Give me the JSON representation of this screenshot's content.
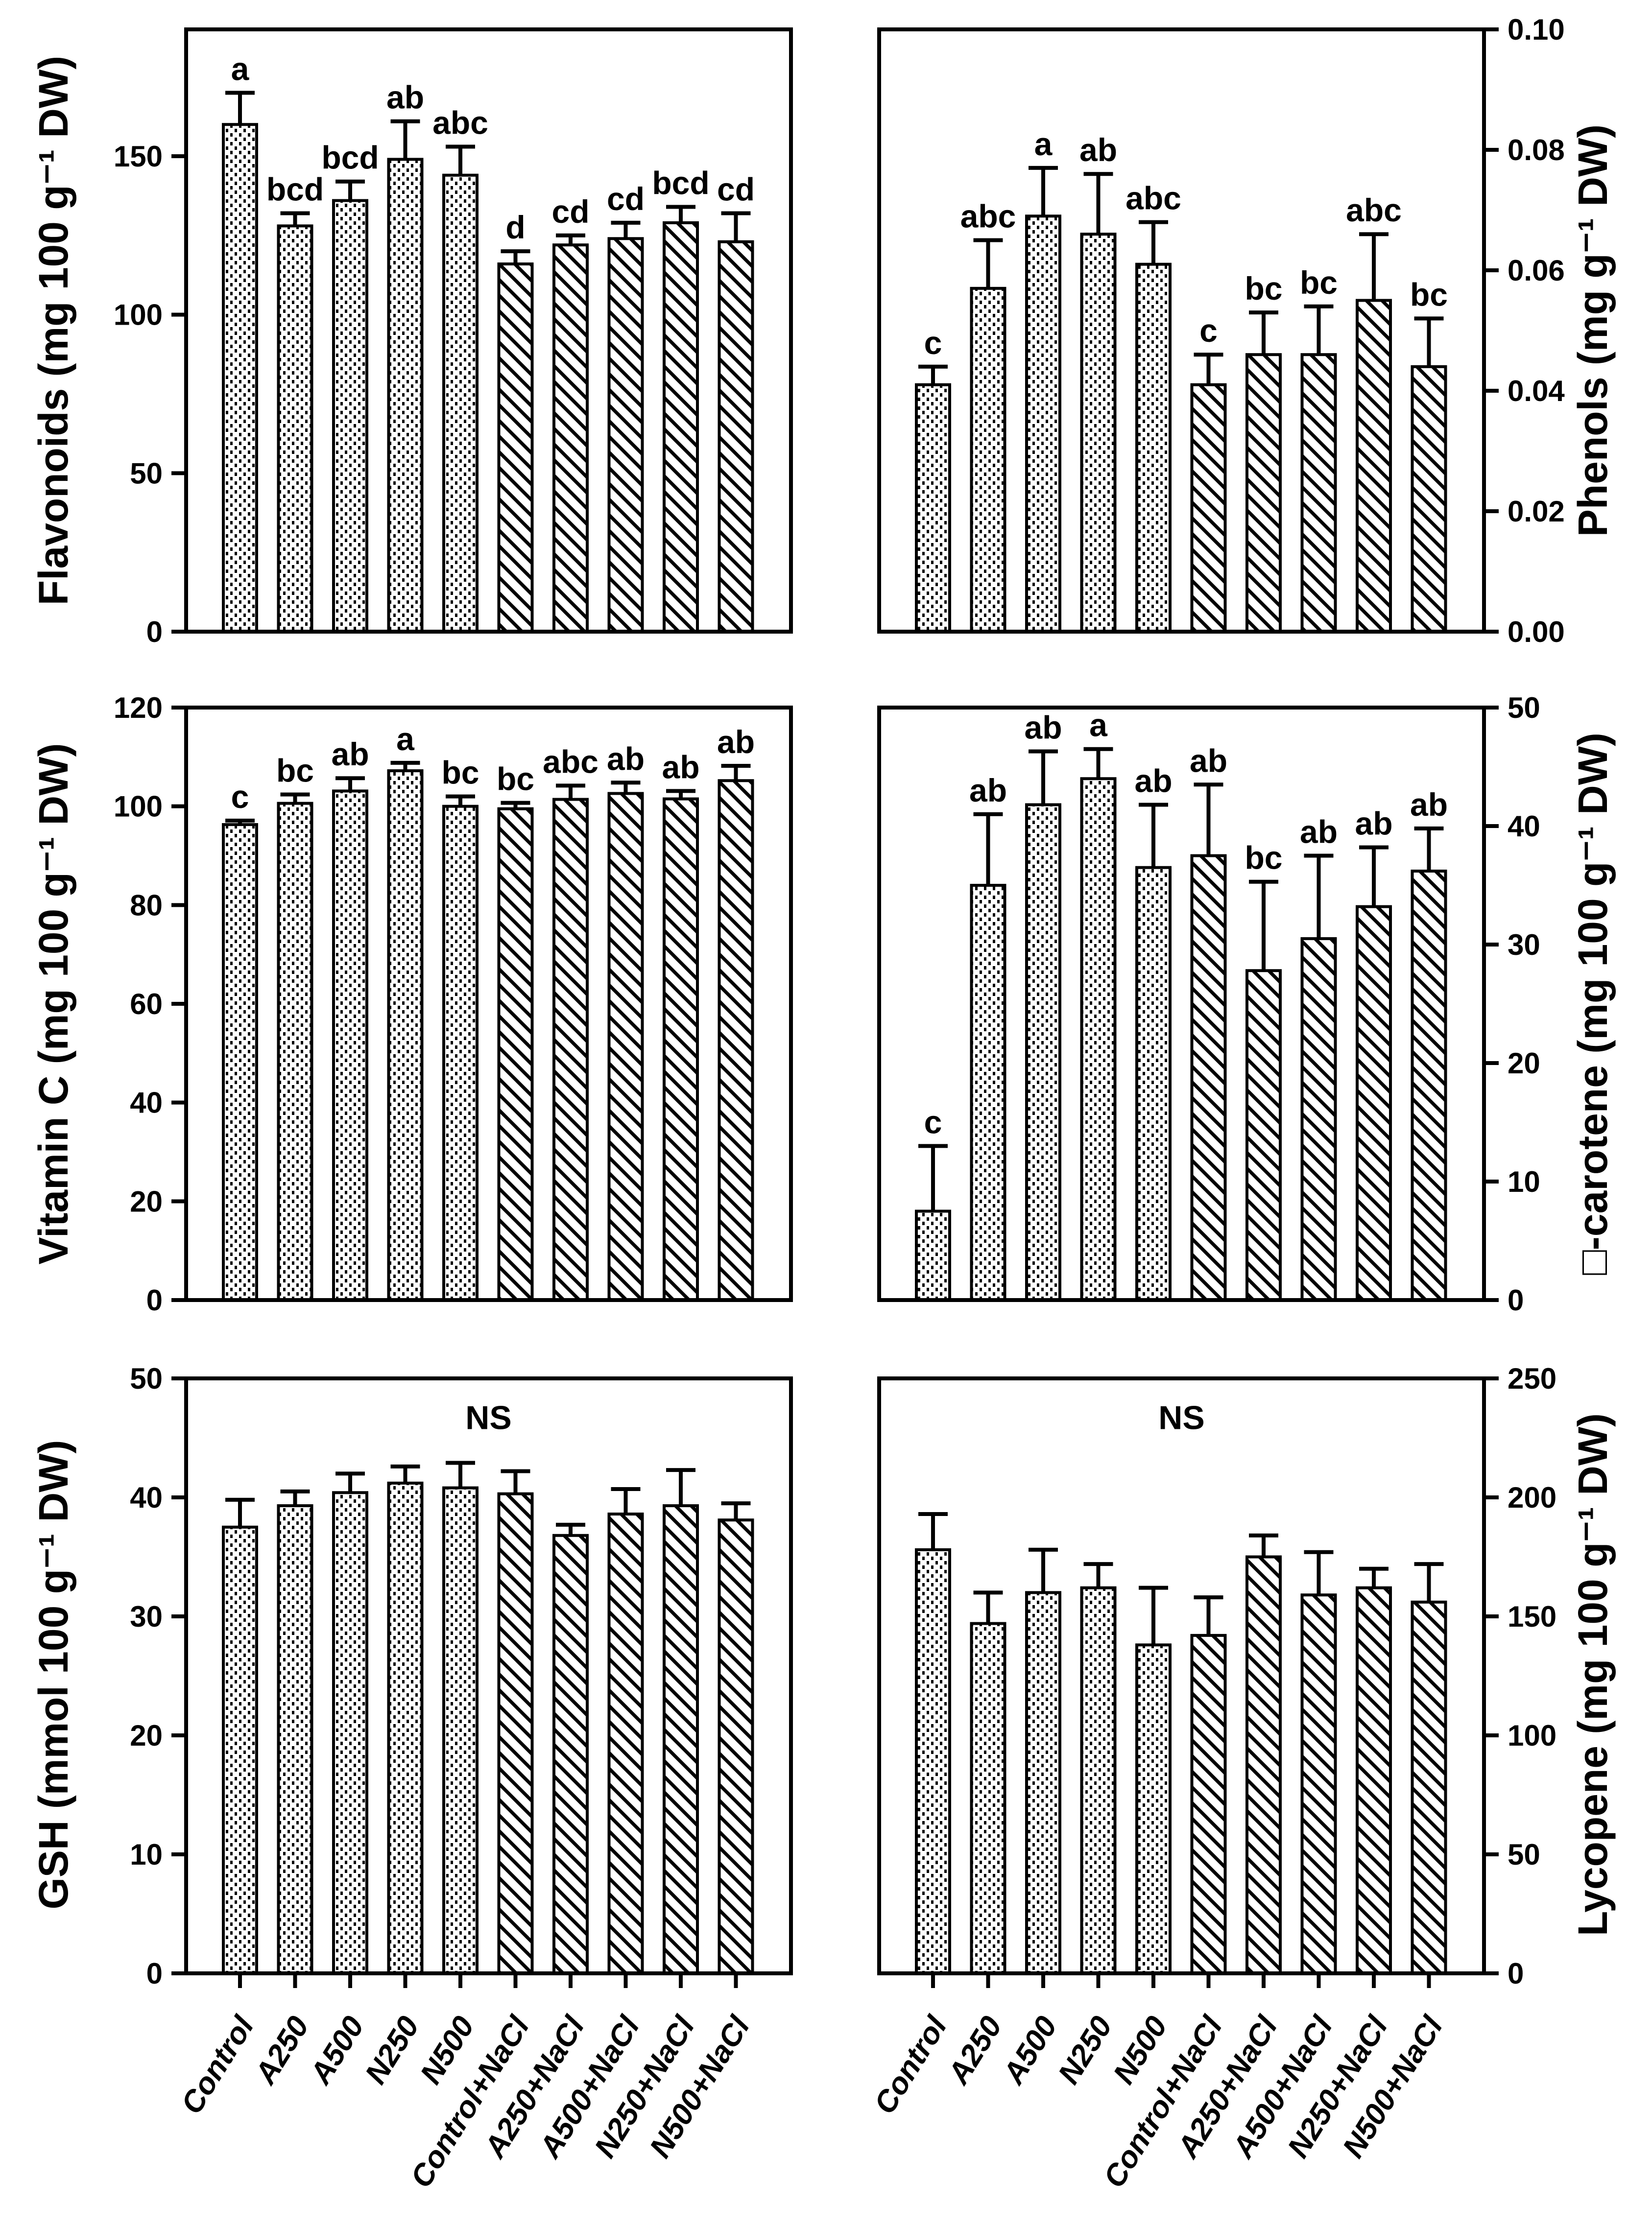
{
  "figure": {
    "background": "#ffffff",
    "ink": "#000000",
    "categories": [
      "Control",
      "A250",
      "A500",
      "N250",
      "N500",
      "Control+NaCl",
      "A250+NaCl",
      "A500+NaCl",
      "N250+NaCl",
      "N500+NaCl"
    ],
    "bar_fill_patterns": {
      "treatments_bars_1_to_5": "fine-dots",
      "nacl_bars_6_to_10": "diagonal-hatch"
    },
    "pattern_split_index": 5
  },
  "chart_data": [
    {
      "id": "flavonoids",
      "type": "bar",
      "row": 0,
      "col": 0,
      "axis_side": "left",
      "grid": false,
      "ylabel": "Flavonoids (mg 100 g⁻¹ DW)",
      "ylim": [
        0,
        190
      ],
      "yticks": [
        0,
        50,
        100,
        150
      ],
      "ytick_labels": [
        "0",
        "50",
        "100",
        "150"
      ],
      "categories": [
        "Control",
        "A250",
        "A500",
        "N250",
        "N500",
        "Control+NaCl",
        "A250+NaCl",
        "A500+NaCl",
        "N250+NaCl",
        "N500+NaCl"
      ],
      "values": [
        160,
        128,
        136,
        149,
        144,
        116,
        122,
        124,
        129,
        123
      ],
      "errors": [
        10,
        4,
        6,
        12,
        9,
        4,
        3,
        5,
        5,
        9
      ],
      "sig_letters": [
        "a",
        "bcd",
        "bcd",
        "ab",
        "abc",
        "d",
        "cd",
        "cd",
        "bcd",
        "cd"
      ],
      "annotation": "",
      "show_x_labels": false
    },
    {
      "id": "phenols",
      "type": "bar",
      "row": 0,
      "col": 1,
      "axis_side": "right",
      "grid": false,
      "ylabel": "Phenols (mg g⁻¹ DW)",
      "ylim": [
        0,
        0.1
      ],
      "yticks": [
        0,
        0.02,
        0.04,
        0.06,
        0.08,
        0.1
      ],
      "ytick_labels": [
        "0.00",
        "0.02",
        "0.04",
        "0.06",
        "0.08",
        "0.10"
      ],
      "categories": [
        "Control",
        "A250",
        "A500",
        "N250",
        "N500",
        "Control+NaCl",
        "A250+NaCl",
        "A500+NaCl",
        "N250+NaCl",
        "N500+NaCl"
      ],
      "values": [
        0.041,
        0.057,
        0.069,
        0.066,
        0.061,
        0.041,
        0.046,
        0.046,
        0.055,
        0.044
      ],
      "errors": [
        0.003,
        0.008,
        0.008,
        0.01,
        0.007,
        0.005,
        0.007,
        0.008,
        0.011,
        0.008
      ],
      "sig_letters": [
        "c",
        "abc",
        "a",
        "ab",
        "abc",
        "c",
        "bc",
        "bc",
        "abc",
        "bc"
      ],
      "annotation": "",
      "show_x_labels": false
    },
    {
      "id": "vitamin-c",
      "type": "bar",
      "row": 1,
      "col": 0,
      "axis_side": "left",
      "grid": false,
      "ylabel": "Vitamin C (mg 100 g⁻¹ DW)",
      "ylim": [
        0,
        120
      ],
      "yticks": [
        0,
        20,
        40,
        60,
        80,
        100,
        120
      ],
      "ytick_labels": [
        "0",
        "20",
        "40",
        "60",
        "80",
        "100",
        "120"
      ],
      "categories": [
        "Control",
        "A250",
        "A500",
        "N250",
        "N500",
        "Control+NaCl",
        "A250+NaCl",
        "A500+NaCl",
        "N250+NaCl",
        "N500+NaCl"
      ],
      "values": [
        96.3,
        100.6,
        103.1,
        107.2,
        100.0,
        99.5,
        101.4,
        102.6,
        101.5,
        105.2
      ],
      "errors": [
        0.8,
        1.8,
        2.6,
        1.6,
        2.0,
        1.2,
        2.8,
        2.2,
        1.6,
        3.0
      ],
      "sig_letters": [
        "c",
        "bc",
        "ab",
        "a",
        "bc",
        "bc",
        "abc",
        "ab",
        "ab",
        "ab"
      ],
      "annotation": "",
      "show_x_labels": false
    },
    {
      "id": "beta-carotene",
      "type": "bar",
      "row": 1,
      "col": 1,
      "axis_side": "right",
      "grid": false,
      "ylabel": "□-carotene (mg 100 g⁻¹ DW)",
      "ylim": [
        0,
        50
      ],
      "yticks": [
        0,
        10,
        20,
        30,
        40,
        50
      ],
      "ytick_labels": [
        "0",
        "10",
        "20",
        "30",
        "40",
        "50"
      ],
      "categories": [
        "Control",
        "A250",
        "A500",
        "N250",
        "N500",
        "Control+NaCl",
        "A250+NaCl",
        "A500+NaCl",
        "N250+NaCl",
        "N500+NaCl"
      ],
      "values": [
        7.5,
        35.0,
        41.8,
        44.0,
        36.5,
        37.5,
        27.8,
        30.5,
        33.2,
        36.2
      ],
      "errors": [
        5.5,
        6.0,
        4.5,
        2.5,
        5.3,
        6.0,
        7.5,
        7.0,
        5.0,
        3.6
      ],
      "sig_letters": [
        "c",
        "ab",
        "ab",
        "a",
        "ab",
        "ab",
        "bc",
        "ab",
        "ab",
        "ab"
      ],
      "annotation": "",
      "show_x_labels": false
    },
    {
      "id": "gsh",
      "type": "bar",
      "row": 2,
      "col": 0,
      "axis_side": "left",
      "grid": false,
      "ylabel": "GSH (mmol 100 g⁻¹ DW)",
      "ylim": [
        0,
        50
      ],
      "yticks": [
        0,
        10,
        20,
        30,
        40,
        50
      ],
      "ytick_labels": [
        "0",
        "10",
        "20",
        "30",
        "40",
        "50"
      ],
      "categories": [
        "Control",
        "A250",
        "A500",
        "N250",
        "N500",
        "Control+NaCl",
        "A250+NaCl",
        "A500+NaCl",
        "N250+NaCl",
        "N500+NaCl"
      ],
      "values": [
        37.5,
        39.3,
        40.4,
        41.2,
        40.8,
        40.3,
        36.8,
        38.6,
        39.3,
        38.1
      ],
      "errors": [
        2.3,
        1.2,
        1.6,
        1.4,
        2.1,
        1.9,
        0.9,
        2.1,
        3.0,
        1.4
      ],
      "sig_letters": null,
      "annotation": "NS",
      "show_x_labels": true
    },
    {
      "id": "lycopene",
      "type": "bar",
      "row": 2,
      "col": 1,
      "axis_side": "right",
      "grid": false,
      "ylabel": "Lycopene (mg 100 g⁻¹ DW)",
      "ylim": [
        0,
        250
      ],
      "yticks": [
        0,
        50,
        100,
        150,
        200,
        250
      ],
      "ytick_labels": [
        "0",
        "50",
        "100",
        "150",
        "200",
        "250"
      ],
      "categories": [
        "Control",
        "A250",
        "A500",
        "N250",
        "N500",
        "Control+NaCl",
        "A250+NaCl",
        "A500+NaCl",
        "N250+NaCl",
        "N500+NaCl"
      ],
      "values": [
        178,
        147,
        160,
        162,
        138,
        142,
        175,
        159,
        162,
        156
      ],
      "errors": [
        15,
        13,
        18,
        10,
        24,
        16,
        9,
        18,
        8,
        16
      ],
      "sig_letters": null,
      "annotation": "NS",
      "show_x_labels": true
    }
  ]
}
